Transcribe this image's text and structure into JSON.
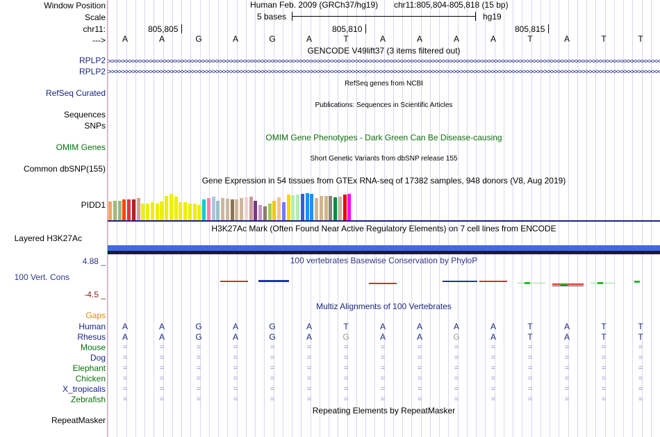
{
  "labels": {
    "window_position": "Window Position",
    "scale": "Scale",
    "chrom": "chr11:",
    "strand": "--->",
    "rplp2_a": "RPLP2",
    "rplp2_b": "RPLP2",
    "refseq": "RefSeq Curated",
    "sequences": "Sequences",
    "snps": "SNPs",
    "omim": "OMIM Genes",
    "common_dbsnp": "Common dbSNP(155)",
    "pidd1": "PIDD1",
    "layered": "Layered H3K27Ac",
    "cons_max": "4.88 _",
    "cons": "100 Vert. Cons",
    "cons_min": "-4.5 _",
    "gaps": "Gaps",
    "human": "Human",
    "rhesus": "Rhesus",
    "mouse": "Mouse",
    "dog": "Dog",
    "elephant": "Elephant",
    "chicken": "Chicken",
    "xtrop": "X_tropicalis",
    "zebrafish": "Zebrafish",
    "repeatmasker": "RepeatMasker"
  },
  "header": {
    "assembly": "Human Feb. 2009 (GRCh37/hg19)",
    "position": "chr11:805,804-805,818 (15 bp)",
    "scale_text": "5 bases",
    "scale_db": "hg19",
    "ticks": [
      "805,805",
      "805,810",
      "805,815"
    ]
  },
  "tracks": {
    "gencode": "GENCODE V49lift37 (3 items filtered out)",
    "refseq_title": "RefSeq genes from NCBI",
    "publications": "Publications: Sequences in Scientific Articles",
    "omim_title": "OMIM Gene Phenotypes - Dark Green Can Be Disease-causing",
    "dbsnp_title": "Short Genetic Variants from dbSNP release 155",
    "gtex_title": "Gene Expression in 54 tissues from GTEx RNA-seq of 17382 samples, 948 donors (V8, Aug 2019)",
    "h3k27_title": "H3K27Ac Mark (Often Found Near Active Regulatory Elements) on 7 cell lines from ENCODE",
    "phylop_title": "100 vertebrates Basewise Conservation by PhyloP",
    "multiz_title": "Multiz Alignments of 100 Vertebrates",
    "repeat_title": "Repeating Elements by RepeatMasker"
  },
  "sequence": {
    "reference": [
      "A",
      "A",
      "G",
      "A",
      "G",
      "A",
      "T",
      "A",
      "A",
      "A",
      "A",
      "T",
      "A",
      "T",
      "T"
    ],
    "human": [
      "A",
      "A",
      "G",
      "A",
      "G",
      "A",
      "T",
      "A",
      "A",
      "A",
      "A",
      "T",
      "A",
      "T",
      "T"
    ],
    "rhesus": [
      "A",
      "A",
      "G",
      "A",
      "G",
      "A",
      "G",
      "A",
      "A",
      "G",
      "A",
      "T",
      "A",
      "T",
      "T"
    ],
    "same_symbol": "="
  },
  "gtex": {
    "tissues_count": 54,
    "expression_fraction": [
      0.74,
      0.77,
      0.77,
      0.84,
      0.82,
      0.82,
      0.9,
      0.66,
      0.66,
      0.71,
      0.66,
      0.74,
      0.98,
      1.06,
      0.95,
      0.71,
      0.71,
      0.66,
      0.66,
      0.61,
      0.82,
      0.9,
      0.95,
      0.77,
      0.9,
      0.87,
      0.84,
      0.84,
      0.9,
      0.92,
      0.95,
      0.79,
      0.61,
      0.56,
      0.66,
      0.77,
      0.92,
      0.71,
      1.03,
      1.0,
      1.03,
      1.06,
      1.09,
      1.06,
      0.9,
      0.98,
      0.98,
      0.98,
      0.92,
      0.95,
      1.03,
      1.06,
      1.0,
      0.66
    ],
    "colors": [
      "#f4a460",
      "#a8b878",
      "#8fbc8f",
      "#ff4500",
      "#e0373e",
      "#b22222",
      "#cdaa7d",
      "#eeee00",
      "#eeee00",
      "#eeee00",
      "#eeee00",
      "#eeee00",
      "#eeee00",
      "#eeee00",
      "#eeee00",
      "#eeee00",
      "#eeee00",
      "#eeee00",
      "#eeee00",
      "#eeee00",
      "#00ced1",
      "#ff82ab",
      "#b0c4de",
      "#9ac0cd",
      "#cdb79e",
      "#cdb79e",
      "#8b7355",
      "#cdb79e",
      "#cdb79e",
      "#eed5d2",
      "#cd9b9b",
      "#7a378b",
      "#cd96cd",
      "#8b7d6b",
      "#a2cd5a",
      "#eec900",
      "#eec591",
      "#7777ff",
      "#ffd700",
      "#b4eeb4",
      "#b4eeb4",
      "#3a5fcd",
      "#1e90ff",
      "#1e90ff",
      "#cdb79e",
      "#d2b48c",
      "#d2b48c",
      "#8b8378",
      "#008b45",
      "#cdb79e",
      "#ee0000",
      "#ff00ff",
      "#ffffff",
      "#ffffff"
    ]
  },
  "colors": {
    "h3k27_blue": "#4169e1",
    "h3k27_dark": "#1a1a40",
    "cons_red": "#cc3333",
    "cons_blue": "#2233aa",
    "cons_green": "#22bb22"
  }
}
